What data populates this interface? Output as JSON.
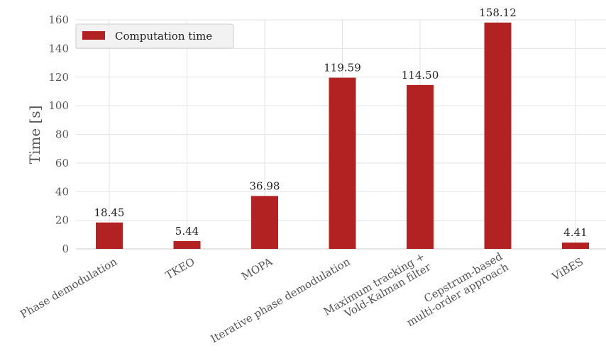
{
  "chart_data": {
    "type": "bar",
    "categories": [
      [
        "Phase demodulation"
      ],
      [
        "TKEO"
      ],
      [
        "MOPA"
      ],
      [
        "Iterative phase demodulation"
      ],
      [
        "Maximum tracking +",
        "Vold-Kalman filter"
      ],
      [
        "Cepstrum-based",
        "multi-order approach"
      ],
      [
        "ViBES"
      ]
    ],
    "series": [
      {
        "name": "Computation time",
        "values": [
          18.45,
          5.44,
          36.98,
          119.59,
          114.5,
          158.12,
          4.41
        ],
        "color": "#b22222"
      }
    ],
    "value_labels": [
      "18.45",
      "5.44",
      "36.98",
      "119.59",
      "114.50",
      "158.12",
      "4.41"
    ],
    "ylabel": "Time [s]",
    "xlabel": "",
    "ylim": [
      0,
      160
    ],
    "yticks": [
      0,
      20,
      40,
      60,
      80,
      100,
      120,
      140,
      160
    ],
    "grid": true,
    "legend_position": "top-left"
  }
}
